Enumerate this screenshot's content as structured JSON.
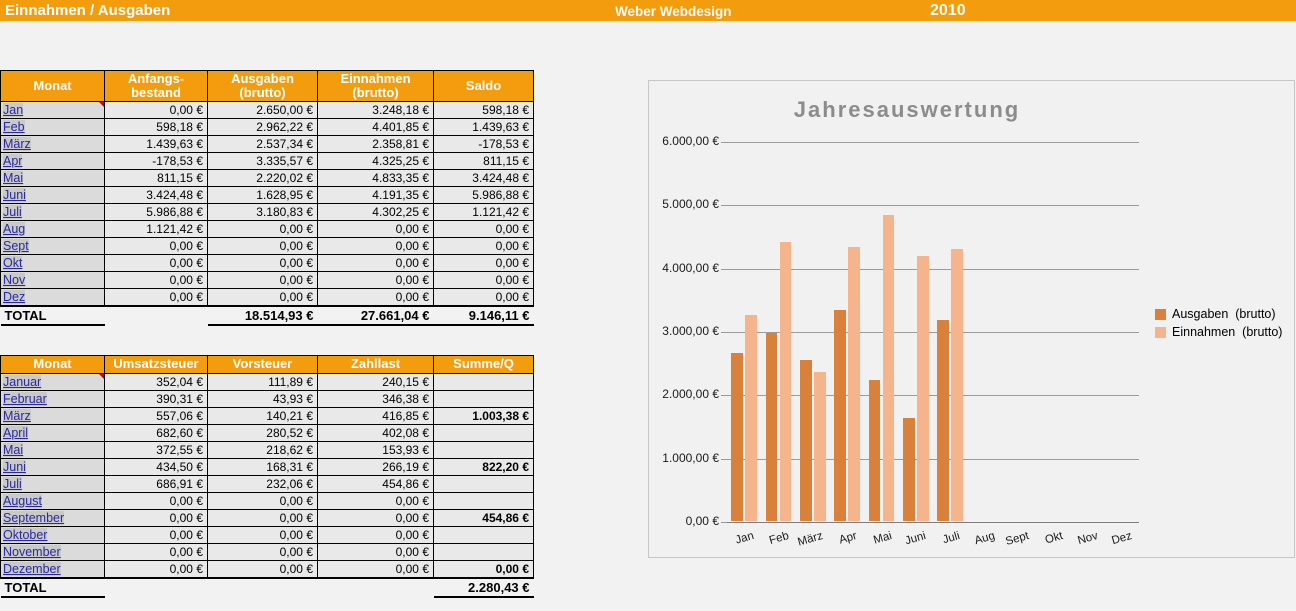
{
  "header": {
    "title": "Einnahmen / Ausgaben",
    "company": "Weber Webdesign",
    "year": "2010",
    "accent_color": "#F39C0E"
  },
  "table1": {
    "columns": [
      "Monat",
      "Anfangs-\nbestand",
      "Ausgaben\n(brutto)",
      "Einnahmen\n(brutto)",
      "Saldo"
    ],
    "rows": [
      {
        "month": "Jan",
        "values": [
          "0,00 €",
          "2.650,00 €",
          "3.248,18 €",
          "598,18 €"
        ]
      },
      {
        "month": "Feb",
        "values": [
          "598,18 €",
          "2.962,22 €",
          "4.401,85 €",
          "1.439,63 €"
        ]
      },
      {
        "month": "März",
        "values": [
          "1.439,63 €",
          "2.537,34 €",
          "2.358,81 €",
          "-178,53 €"
        ]
      },
      {
        "month": "Apr",
        "values": [
          "-178,53 €",
          "3.335,57 €",
          "4.325,25 €",
          "811,15 €"
        ]
      },
      {
        "month": "Mai",
        "values": [
          "811,15 €",
          "2.220,02 €",
          "4.833,35 €",
          "3.424,48 €"
        ]
      },
      {
        "month": "Juni",
        "values": [
          "3.424,48 €",
          "1.628,95 €",
          "4.191,35 €",
          "5.986,88 €"
        ]
      },
      {
        "month": "Juli",
        "values": [
          "5.986,88 €",
          "3.180,83 €",
          "4.302,25 €",
          "1.121,42 €"
        ]
      },
      {
        "month": "Aug",
        "values": [
          "1.121,42 €",
          "0,00 €",
          "0,00 €",
          "0,00 €"
        ]
      },
      {
        "month": "Sept",
        "values": [
          "0,00 €",
          "0,00 €",
          "0,00 €",
          "0,00 €"
        ]
      },
      {
        "month": "Okt",
        "values": [
          "0,00 €",
          "0,00 €",
          "0,00 €",
          "0,00 €"
        ]
      },
      {
        "month": "Nov",
        "values": [
          "0,00 €",
          "0,00 €",
          "0,00 €",
          "0,00 €"
        ]
      },
      {
        "month": "Dez",
        "values": [
          "0,00 €",
          "0,00 €",
          "0,00 €",
          "0,00 €"
        ]
      }
    ],
    "total": {
      "label": "TOTAL",
      "values": [
        "",
        "18.514,93 €",
        "27.661,04 €",
        "9.146,11 €"
      ]
    }
  },
  "table2": {
    "columns": [
      "Monat",
      "Umsatzsteuer",
      "Vorsteuer",
      "Zahllast",
      "Summe/Q"
    ],
    "rows": [
      {
        "month": "Januar",
        "values": [
          "352,04 €",
          "111,89 €",
          "240,15 €",
          ""
        ]
      },
      {
        "month": "Februar",
        "values": [
          "390,31 €",
          "43,93 €",
          "346,38 €",
          ""
        ]
      },
      {
        "month": "März",
        "values": [
          "557,06 €",
          "140,21 €",
          "416,85 €",
          "1.003,38 €"
        ]
      },
      {
        "month": "April",
        "values": [
          "682,60 €",
          "280,52 €",
          "402,08 €",
          ""
        ]
      },
      {
        "month": "Mai",
        "values": [
          "372,55 €",
          "218,62 €",
          "153,93 €",
          ""
        ]
      },
      {
        "month": "Juni",
        "values": [
          "434,50 €",
          "168,31 €",
          "266,19 €",
          "822,20 €"
        ]
      },
      {
        "month": "Juli",
        "values": [
          "686,91 €",
          "232,06 €",
          "454,86 €",
          ""
        ]
      },
      {
        "month": "August",
        "values": [
          "0,00 €",
          "0,00 €",
          "0,00 €",
          ""
        ]
      },
      {
        "month": "September",
        "values": [
          "0,00 €",
          "0,00 €",
          "0,00 €",
          "454,86 €"
        ]
      },
      {
        "month": "Oktober",
        "values": [
          "0,00 €",
          "0,00 €",
          "0,00 €",
          ""
        ]
      },
      {
        "month": "November",
        "values": [
          "0,00 €",
          "0,00 €",
          "0,00 €",
          ""
        ]
      },
      {
        "month": "Dezember",
        "values": [
          "0,00 €",
          "0,00 €",
          "0,00 €",
          "0,00 €"
        ]
      }
    ],
    "total": {
      "label": "TOTAL",
      "values": [
        "",
        "",
        "",
        "2.280,43 €"
      ]
    }
  },
  "chart_data": {
    "type": "bar",
    "title": "Jahresauswertung",
    "categories": [
      "Jan",
      "Feb",
      "März",
      "Apr",
      "Mai",
      "Juni",
      "Juli",
      "Aug",
      "Sept",
      "Okt",
      "Nov",
      "Dez"
    ],
    "series": [
      {
        "name": "Ausgaben  (brutto)",
        "color": "#D9813A",
        "values": [
          2650.0,
          2962.22,
          2537.34,
          3335.57,
          2220.02,
          1628.95,
          3180.83,
          0,
          0,
          0,
          0,
          0
        ]
      },
      {
        "name": "Einnahmen  (brutto)",
        "color": "#F5B48C",
        "values": [
          3248.18,
          4401.85,
          2358.81,
          4325.25,
          4833.35,
          4191.35,
          4302.25,
          0,
          0,
          0,
          0,
          0
        ]
      }
    ],
    "ylim": [
      0,
      6000
    ],
    "ytick_step": 1000,
    "ytick_labels": [
      "0,00 €",
      "1.000,00 €",
      "2.000,00 €",
      "3.000,00 €",
      "4.000,00 €",
      "5.000,00 €",
      "6.000,00 €"
    ],
    "grid": true,
    "legend_position": "right",
    "title_color": "#8C8C8C"
  }
}
